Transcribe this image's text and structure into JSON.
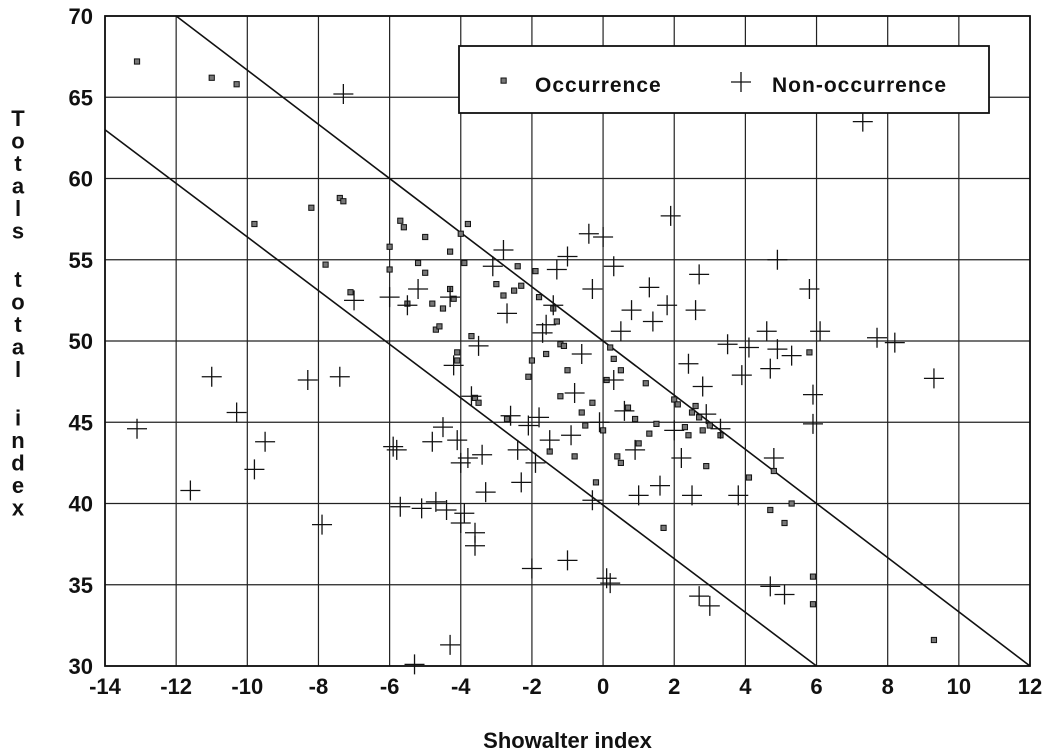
{
  "chart_data": {
    "type": "scatter",
    "xlabel": "Showalter index",
    "ylabel": "Totals total index",
    "xlim": [
      -14,
      12
    ],
    "ylim": [
      30,
      70
    ],
    "xticks": [
      -14,
      -12,
      -10,
      -8,
      -6,
      -4,
      -2,
      0,
      2,
      4,
      6,
      8,
      10,
      12
    ],
    "yticks": [
      30,
      35,
      40,
      45,
      50,
      55,
      60,
      65,
      70
    ],
    "grid": true,
    "legend_position": "top-right",
    "lines": [
      {
        "x": [
          -12,
          12
        ],
        "y": [
          70,
          30
        ]
      },
      {
        "x": [
          -14,
          6
        ],
        "y": [
          63,
          30
        ]
      }
    ],
    "series": [
      {
        "name": "Occurrence",
        "marker": "square",
        "points": [
          [
            -13.1,
            67.2
          ],
          [
            -11,
            66.2
          ],
          [
            -10.3,
            65.8
          ],
          [
            -9.8,
            57.2
          ],
          [
            -8.2,
            58.2
          ],
          [
            -7.8,
            54.7
          ],
          [
            -7.4,
            58.8
          ],
          [
            -7.3,
            58.6
          ],
          [
            -7.1,
            53
          ],
          [
            -6,
            55.8
          ],
          [
            -6,
            54.4
          ],
          [
            -5.7,
            57.4
          ],
          [
            -5.6,
            57
          ],
          [
            -5.5,
            52.3
          ],
          [
            -5.2,
            54.8
          ],
          [
            -5,
            56.4
          ],
          [
            -5,
            54.2
          ],
          [
            -4.8,
            52.3
          ],
          [
            -4.7,
            50.7
          ],
          [
            -4.6,
            50.9
          ],
          [
            -4.5,
            52
          ],
          [
            -4.3,
            55.5
          ],
          [
            -4.3,
            53.2
          ],
          [
            -4.2,
            52.6
          ],
          [
            -4.1,
            48.8
          ],
          [
            -4.1,
            49.3
          ],
          [
            -4,
            56.6
          ],
          [
            -3.9,
            54.8
          ],
          [
            -3.8,
            57.2
          ],
          [
            -3.7,
            50.3
          ],
          [
            -3.6,
            46.5
          ],
          [
            -3.5,
            46.2
          ],
          [
            -3,
            53.5
          ],
          [
            -2.8,
            52.8
          ],
          [
            -2.7,
            45.2
          ],
          [
            -2.5,
            53.1
          ],
          [
            -2.4,
            54.6
          ],
          [
            -2.3,
            53.4
          ],
          [
            -2.1,
            47.8
          ],
          [
            -2,
            48.8
          ],
          [
            -1.9,
            54.3
          ],
          [
            -1.8,
            52.7
          ],
          [
            -1.6,
            49.2
          ],
          [
            -1.5,
            43.2
          ],
          [
            -1.4,
            52
          ],
          [
            -1.3,
            51.2
          ],
          [
            -1.2,
            49.8
          ],
          [
            -1.2,
            46.6
          ],
          [
            -1.1,
            49.7
          ],
          [
            -1,
            48.2
          ],
          [
            -0.8,
            42.9
          ],
          [
            -0.6,
            45.6
          ],
          [
            -0.5,
            44.8
          ],
          [
            -0.3,
            46.2
          ],
          [
            -0.2,
            41.3
          ],
          [
            0,
            44.5
          ],
          [
            0.1,
            47.6
          ],
          [
            0.2,
            49.6
          ],
          [
            0.3,
            48.9
          ],
          [
            0.4,
            42.9
          ],
          [
            0.5,
            42.5
          ],
          [
            0.5,
            48.2
          ],
          [
            0.7,
            45.9
          ],
          [
            0.9,
            45.2
          ],
          [
            1,
            43.7
          ],
          [
            1.2,
            47.4
          ],
          [
            1.3,
            44.3
          ],
          [
            1.5,
            44.9
          ],
          [
            1.7,
            38.5
          ],
          [
            2,
            46.4
          ],
          [
            2.1,
            46.1
          ],
          [
            2.3,
            44.7
          ],
          [
            2.4,
            44.2
          ],
          [
            2.5,
            45.6
          ],
          [
            2.6,
            46
          ],
          [
            2.7,
            45.3
          ],
          [
            2.8,
            44.5
          ],
          [
            2.9,
            42.3
          ],
          [
            3,
            44.8
          ],
          [
            3.3,
            44.2
          ],
          [
            4.1,
            41.6
          ],
          [
            4.7,
            39.6
          ],
          [
            4.8,
            42
          ],
          [
            5.1,
            38.8
          ],
          [
            5.3,
            40
          ],
          [
            5.9,
            35.5
          ],
          [
            5.9,
            33.8
          ],
          [
            5.8,
            49.3
          ],
          [
            9.3,
            31.6
          ]
        ]
      },
      {
        "name": "Non-occurrence",
        "marker": "plus",
        "points": [
          [
            -13.1,
            44.6
          ],
          [
            -11.6,
            40.8
          ],
          [
            -11,
            47.8
          ],
          [
            -10.3,
            45.6
          ],
          [
            -9.8,
            42.1
          ],
          [
            -9.5,
            43.8
          ],
          [
            -8.3,
            47.6
          ],
          [
            -7.9,
            38.7
          ],
          [
            -7.4,
            47.8
          ],
          [
            -7.3,
            65.2
          ],
          [
            -7,
            52.5
          ],
          [
            -6,
            52.7
          ],
          [
            -5.9,
            43.5
          ],
          [
            -5.8,
            43.3
          ],
          [
            -5.7,
            39.8
          ],
          [
            -5.5,
            52.2
          ],
          [
            -5.2,
            53.2
          ],
          [
            -5.1,
            39.7
          ],
          [
            -5.3,
            30.1
          ],
          [
            -4.8,
            43.8
          ],
          [
            -4.7,
            40.1
          ],
          [
            -4.5,
            44.7
          ],
          [
            -4.4,
            39.6
          ],
          [
            -4.3,
            52.7
          ],
          [
            -4.2,
            48.5
          ],
          [
            -4.3,
            31.3
          ],
          [
            -4.1,
            43.9
          ],
          [
            -4,
            42.5
          ],
          [
            -4,
            38.8
          ],
          [
            -3.9,
            39.4
          ],
          [
            -3.8,
            42.8
          ],
          [
            -3.7,
            46.6
          ],
          [
            -3.6,
            37.4
          ],
          [
            -3.6,
            38.2
          ],
          [
            -3.5,
            49.7
          ],
          [
            -3.4,
            43
          ],
          [
            -3.3,
            40.7
          ],
          [
            -3.1,
            54.6
          ],
          [
            -2.8,
            55.6
          ],
          [
            -2.7,
            51.7
          ],
          [
            -2.6,
            45.4
          ],
          [
            -2.4,
            43.3
          ],
          [
            -2.3,
            41.3
          ],
          [
            -2.1,
            44.8
          ],
          [
            -2,
            36
          ],
          [
            -1.9,
            42.5
          ],
          [
            -1.8,
            45.3
          ],
          [
            -1.7,
            50.5
          ],
          [
            -1.6,
            51
          ],
          [
            -1.5,
            43.9
          ],
          [
            -1.4,
            52.2
          ],
          [
            -1.3,
            54.4
          ],
          [
            -1,
            55.2
          ],
          [
            -1,
            36.5
          ],
          [
            -0.9,
            44.2
          ],
          [
            -0.8,
            46.8
          ],
          [
            -0.6,
            49.2
          ],
          [
            -0.4,
            56.6
          ],
          [
            -0.3,
            53.2
          ],
          [
            -0.3,
            40.2
          ],
          [
            -0.1,
            45
          ],
          [
            0,
            56.4
          ],
          [
            0.1,
            35.4
          ],
          [
            0.2,
            35.1
          ],
          [
            0.3,
            54.6
          ],
          [
            0.3,
            47.6
          ],
          [
            0.5,
            50.6
          ],
          [
            0.6,
            45.7
          ],
          [
            0.8,
            51.9
          ],
          [
            0.9,
            43.3
          ],
          [
            1,
            40.5
          ],
          [
            1.3,
            53.3
          ],
          [
            1.4,
            51.2
          ],
          [
            1.6,
            41.1
          ],
          [
            1.8,
            52.2
          ],
          [
            1.9,
            57.7
          ],
          [
            2,
            44.5
          ],
          [
            2.2,
            42.8
          ],
          [
            2.4,
            48.6
          ],
          [
            2.5,
            40.5
          ],
          [
            2.6,
            51.9
          ],
          [
            2.7,
            54.1
          ],
          [
            2.8,
            47.2
          ],
          [
            2.9,
            45.5
          ],
          [
            2.7,
            34.3
          ],
          [
            3,
            33.7
          ],
          [
            3.3,
            44.6
          ],
          [
            3.5,
            49.8
          ],
          [
            3.8,
            40.5
          ],
          [
            3.9,
            47.9
          ],
          [
            4.1,
            49.6
          ],
          [
            4.6,
            50.6
          ],
          [
            4.7,
            48.3
          ],
          [
            4.8,
            42.8
          ],
          [
            4.7,
            34.9
          ],
          [
            4.9,
            55
          ],
          [
            5.1,
            34.4
          ],
          [
            5.3,
            49.1
          ],
          [
            5.8,
            53.2
          ],
          [
            5.9,
            46.7
          ],
          [
            5.9,
            44.9
          ],
          [
            6.1,
            50.6
          ],
          [
            7.3,
            63.5
          ],
          [
            7.7,
            50.2
          ],
          [
            8.2,
            49.9
          ],
          [
            9.3,
            47.7
          ],
          [
            4.9,
            49.5
          ]
        ]
      }
    ]
  }
}
